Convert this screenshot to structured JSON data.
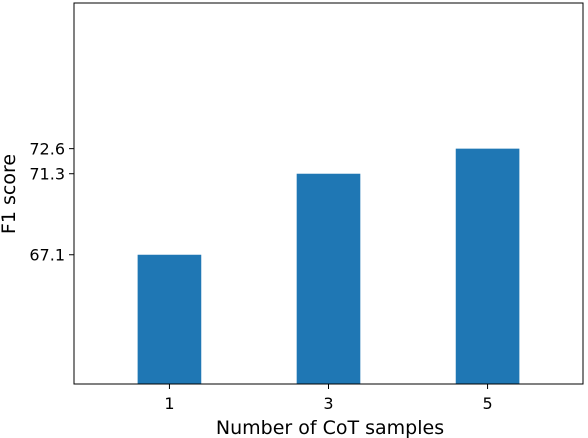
{
  "chart_data": {
    "type": "bar",
    "categories": [
      "1",
      "3",
      "5"
    ],
    "values": [
      67.1,
      71.3,
      72.6
    ],
    "xlabel": "Number of CoT samples",
    "ylabel": "F1 score",
    "yticks": [
      67.1,
      71.3,
      72.6
    ],
    "yticklabels": [
      "67.1",
      "71.3",
      "72.6"
    ],
    "ylim": [
      60.4,
      80.15
    ],
    "grid": false,
    "legend": "none",
    "bar_color": "#1f77b4"
  }
}
